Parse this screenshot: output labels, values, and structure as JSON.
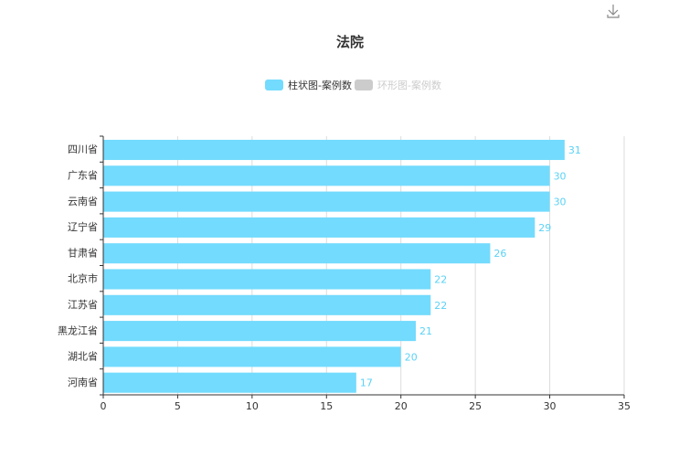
{
  "colors": {
    "bar": "#73dbfd",
    "label": "#5ad2f6",
    "legend_inactive": "#cccccc",
    "axis": "#333333",
    "grid": "#dddddd",
    "toolbox": "#888888"
  },
  "toolbox": {
    "icon": "download-icon"
  },
  "chart_data": {
    "type": "bar",
    "orientation": "horizontal",
    "title": "法院",
    "legend": [
      {
        "name": "柱状图-案例数",
        "active": true
      },
      {
        "name": "环形图-案例数",
        "active": false
      }
    ],
    "legend_position": "top-center",
    "categories": [
      "四川省",
      "广东省",
      "云南省",
      "辽宁省",
      "甘肃省",
      "北京市",
      "江苏省",
      "黑龙江省",
      "湖北省",
      "河南省"
    ],
    "series": [
      {
        "name": "柱状图-案例数",
        "values": [
          31,
          30,
          30,
          29,
          26,
          22,
          22,
          21,
          20,
          17
        ]
      }
    ],
    "xlim": [
      0,
      35
    ],
    "xticks": [
      "0",
      "5",
      "10",
      "15",
      "20",
      "25",
      "30",
      "35"
    ],
    "grid": true,
    "data_labels": true
  }
}
